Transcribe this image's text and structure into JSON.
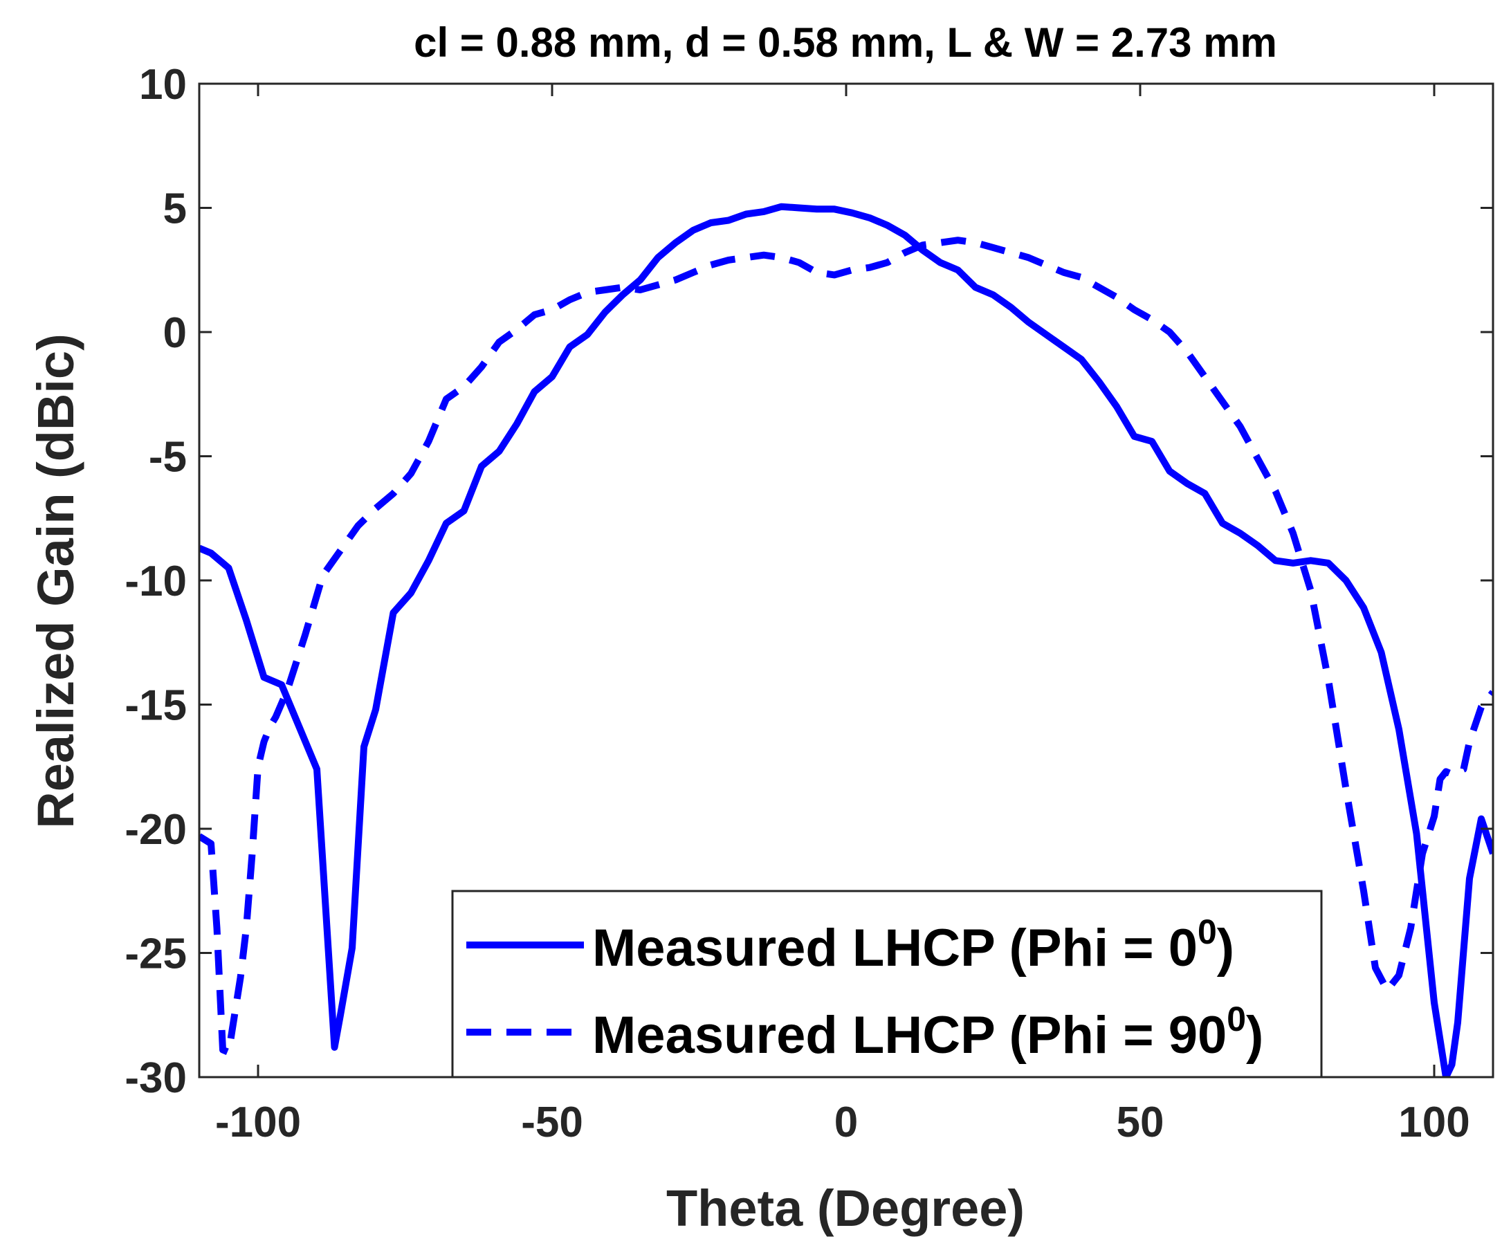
{
  "chart_data": {
    "type": "line",
    "title": "cl = 0.88 mm, d = 0.58 mm, L & W = 2.73 mm",
    "xlabel": "Theta (Degree)",
    "ylabel": "Realized Gain (dBic)",
    "xlim": [
      -110,
      110
    ],
    "ylim": [
      -30,
      10
    ],
    "xticks": [
      -100,
      -50,
      0,
      50,
      100
    ],
    "yticks": [
      -30,
      -25,
      -20,
      -15,
      -10,
      -5,
      0,
      5,
      10
    ],
    "grid": false,
    "legend_position": "bottom-center",
    "series_color": "#0000ff",
    "series": [
      {
        "name_base": "Measured LHCP (Phi = 0",
        "name_sup": "0",
        "name_end": ")",
        "style": "solid",
        "x": [
          -110,
          -108,
          -105,
          -102,
          -99,
          -96,
          -93,
          -90,
          -87,
          -86,
          -84,
          -82,
          -80,
          -77,
          -74,
          -71,
          -68,
          -65,
          -62,
          -59,
          -56,
          -53,
          -50,
          -47,
          -44,
          -41,
          -38,
          -35,
          -32,
          -29,
          -26,
          -23,
          -20,
          -17,
          -14,
          -11,
          -8,
          -5,
          -2,
          1,
          4,
          7,
          10,
          13,
          16,
          19,
          22,
          25,
          28,
          31,
          34,
          37,
          40,
          43,
          46,
          49,
          52,
          55,
          58,
          61,
          64,
          67,
          70,
          73,
          76,
          79,
          82,
          85,
          88,
          91,
          94,
          97,
          100,
          102,
          103,
          104,
          106,
          108,
          110
        ],
        "y": [
          -8.7,
          -8.9,
          -9.5,
          -11.6,
          -13.9,
          -14.2,
          -15.9,
          -17.6,
          -28.8,
          -27.5,
          -24.8,
          -16.7,
          -15.2,
          -11.3,
          -10.5,
          -9.2,
          -7.7,
          -7.2,
          -5.4,
          -4.8,
          -3.7,
          -2.4,
          -1.8,
          -0.6,
          -0.1,
          0.8,
          1.5,
          2.1,
          3.0,
          3.6,
          4.1,
          4.4,
          4.5,
          4.75,
          4.85,
          5.05,
          5.0,
          4.95,
          4.95,
          4.8,
          4.6,
          4.3,
          3.9,
          3.3,
          2.8,
          2.5,
          1.8,
          1.5,
          1.0,
          0.4,
          -0.1,
          -0.6,
          -1.1,
          -2.0,
          -3.0,
          -4.2,
          -4.4,
          -5.6,
          -6.1,
          -6.5,
          -7.7,
          -8.1,
          -8.6,
          -9.2,
          -9.3,
          -9.2,
          -9.3,
          -10.0,
          -11.1,
          -12.9,
          -16.0,
          -20.2,
          -27.0,
          -30.0,
          -29.5,
          -27.8,
          -22.0,
          -19.6,
          -21.0
        ]
      },
      {
        "name_base": "Measured LHCP (Phi = 90",
        "name_sup": "0",
        "name_end": ")",
        "style": "dashed",
        "x": [
          -110,
          -108,
          -107,
          -106,
          -105,
          -104,
          -103,
          -102,
          -101,
          -100,
          -99,
          -98,
          -97,
          -95,
          -92,
          -89,
          -86,
          -83,
          -80,
          -77,
          -74,
          -71,
          -68,
          -65,
          -62,
          -59,
          -56,
          -53,
          -50,
          -47,
          -44,
          -41,
          -38,
          -35,
          -32,
          -29,
          -26,
          -23,
          -20,
          -17,
          -14,
          -11,
          -8,
          -5,
          -2,
          1,
          4,
          7,
          10,
          13,
          16,
          19,
          22,
          25,
          28,
          31,
          34,
          37,
          40,
          43,
          46,
          49,
          52,
          55,
          58,
          61,
          64,
          67,
          70,
          73,
          76,
          79,
          82,
          85,
          88,
          90,
          92,
          94,
          96,
          98,
          100,
          101,
          102,
          103,
          104,
          105,
          106,
          108,
          110
        ],
        "y": [
          -20.3,
          -20.6,
          -24.0,
          -28.9,
          -29.0,
          -27.5,
          -26.0,
          -24.0,
          -21.0,
          -17.5,
          -16.5,
          -15.9,
          -15.5,
          -14.4,
          -12.2,
          -9.8,
          -8.8,
          -7.8,
          -7.1,
          -6.5,
          -5.7,
          -4.4,
          -2.7,
          -2.2,
          -1.4,
          -0.4,
          0.1,
          0.7,
          0.9,
          1.3,
          1.6,
          1.7,
          1.8,
          1.7,
          1.9,
          2.1,
          2.4,
          2.7,
          2.9,
          3.0,
          3.1,
          3.0,
          2.8,
          2.4,
          2.3,
          2.5,
          2.6,
          2.8,
          3.2,
          3.5,
          3.6,
          3.7,
          3.6,
          3.4,
          3.2,
          3.0,
          2.7,
          2.4,
          2.2,
          1.8,
          1.4,
          0.9,
          0.5,
          0.0,
          -0.8,
          -1.8,
          -2.8,
          -3.8,
          -5.1,
          -6.4,
          -8.1,
          -10.4,
          -14.0,
          -18.4,
          -22.5,
          -25.6,
          -26.5,
          -25.9,
          -24.0,
          -21.0,
          -19.5,
          -18.0,
          -17.7,
          -17.8,
          -17.7,
          -17.6,
          -16.5,
          -15.1,
          -14.5
        ]
      }
    ]
  }
}
